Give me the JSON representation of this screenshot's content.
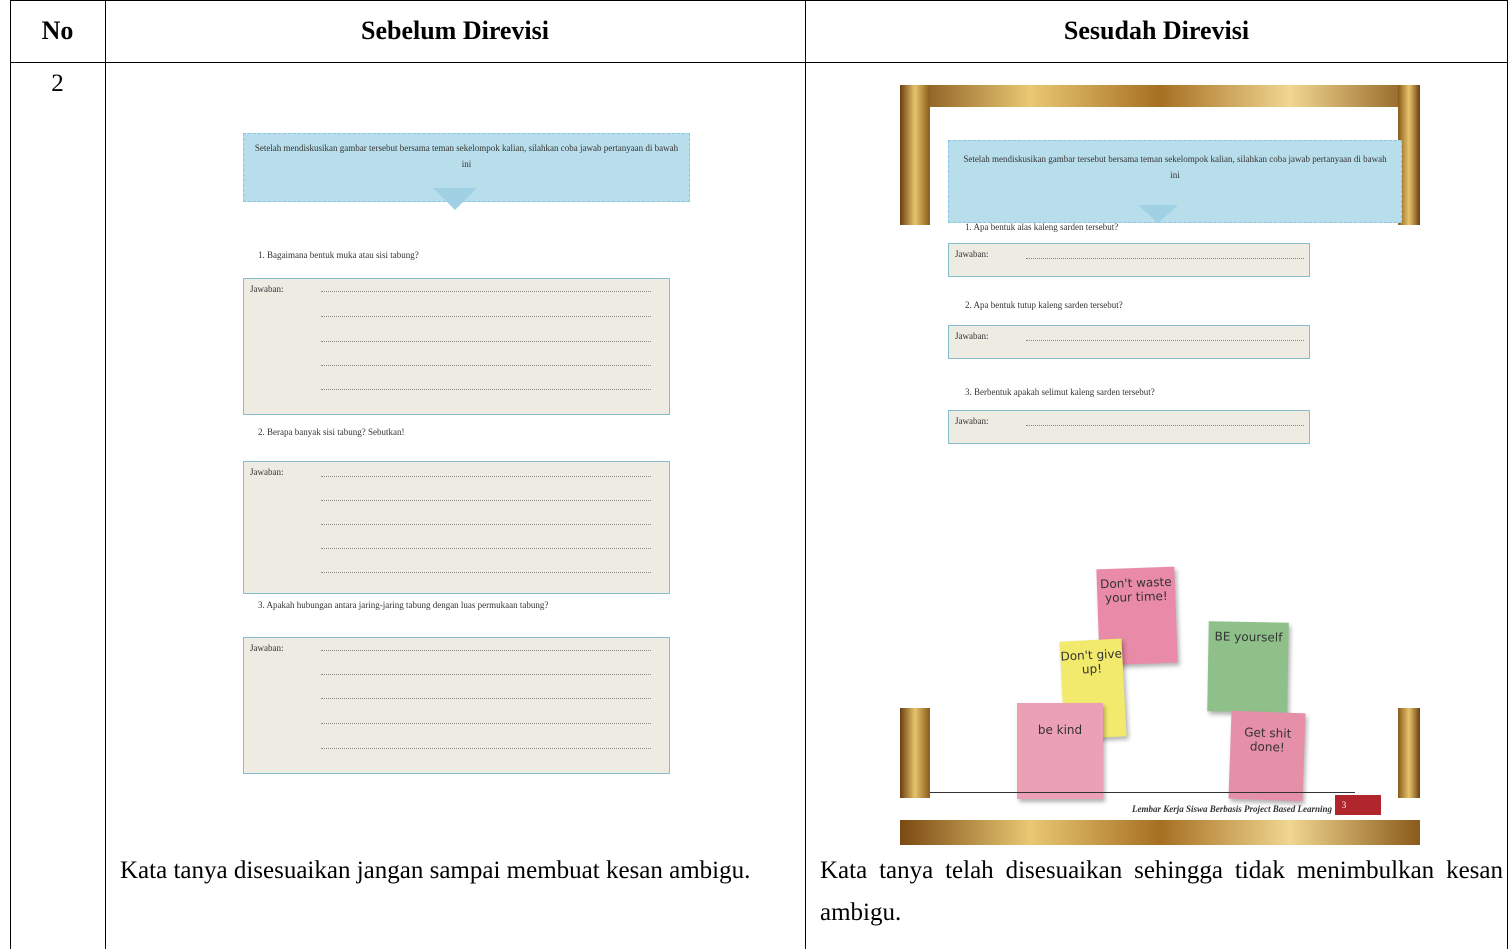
{
  "header": [
    "No",
    "Sebelum Direvisi",
    "Sesudah Direvisi"
  ],
  "row": {
    "no": "2",
    "before": {
      "intro": "Setelah mendiskusikan gambar tersebut bersama teman sekelompok kalian, silahkan coba jawab pertanyaan di bawah ini",
      "questions": [
        {
          "text": "1. Bagaimana bentuk muka atau sisi tabung?",
          "answer_label": "Jawaban:"
        },
        {
          "text": "2. Berapa banyak sisi tabung? Sebutkan!",
          "answer_label": "Jawaban:"
        },
        {
          "text": "3. Apakah hubungan antara jaring-jaring tabung dengan luas permukaan tabung?",
          "answer_label": "Jawaban:"
        }
      ],
      "note": "Kata tanya disesuaikan jangan sampai membuat kesan ambigu."
    },
    "after": {
      "intro": "Setelah mendiskusikan gambar tersebut bersama teman sekelompok kalian, silahkan coba jawab pertanyaan di bawah ini",
      "questions": [
        {
          "text": "1. Apa bentuk alas kaleng sarden tersebut?",
          "answer_label": "Jawaban:"
        },
        {
          "text": "2. Apa bentuk tutup kaleng sarden tersebut?",
          "answer_label": "Jawaban:"
        },
        {
          "text": "3. Berbentuk apakah selimut kaleng sarden tersebut?",
          "answer_label": "Jawaban:"
        }
      ],
      "sticky_notes": [
        "Don't waste your time!",
        "BE yourself",
        "Don't give up!",
        "be kind",
        "Get shit done!"
      ],
      "footer": "Lembar Kerja Siswa Berbasis Project Based Learning",
      "page_number": "3",
      "note": "Kata tanya telah disesuaikan sehingga tidak menimbulkan kesan ambigu."
    }
  }
}
